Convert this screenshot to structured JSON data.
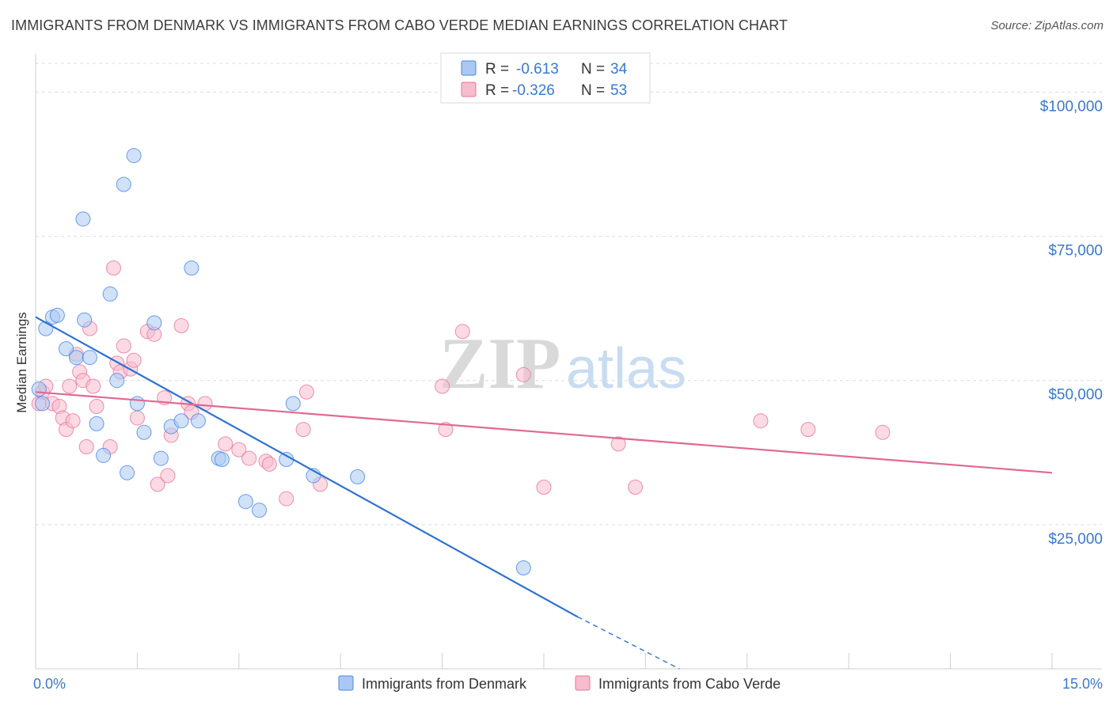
{
  "header": {
    "title": "IMMIGRANTS FROM DENMARK VS IMMIGRANTS FROM CABO VERDE MEDIAN EARNINGS CORRELATION CHART",
    "source": "Source: ZipAtlas.com"
  },
  "watermark": {
    "zip": "ZIP",
    "atlas": "atlas"
  },
  "colors": {
    "blue": "#4a86e8",
    "blue_fill": "#aac8f2",
    "blue_line": "#2e72d2",
    "pink": "#e8769a",
    "pink_fill": "#f7bccd",
    "pink_line": "#e06994",
    "tick_text": "#3a78d0",
    "grid": "#dcdcdc"
  },
  "legend": {
    "rows": [
      {
        "r_label": "R =",
        "r_value": "-0.613",
        "n_label": "N =",
        "n_value": "34"
      },
      {
        "r_label": "R =",
        "r_value": "-0.326",
        "n_label": "N =",
        "n_value": "53"
      }
    ]
  },
  "bottom_legend": {
    "items": [
      {
        "label": "Immigrants from Denmark"
      },
      {
        "label": "Immigrants from Cabo Verde"
      }
    ]
  },
  "chart_data": {
    "type": "scatter",
    "xlabel": "",
    "ylabel": "Median Earnings",
    "xlim": [
      0,
      15
    ],
    "ylim": [
      0,
      105000
    ],
    "x_tick_labels": [
      "0.0%",
      "15.0%"
    ],
    "y_ticks": [
      {
        "value": 25000,
        "label": "$25,000"
      },
      {
        "value": 50000,
        "label": "$50,000"
      },
      {
        "value": 75000,
        "label": "$75,000"
      },
      {
        "value": 100000,
        "label": "$100,000"
      }
    ],
    "grid": true,
    "legend_placement": "top-center",
    "series": [
      {
        "name": "Immigrants from Denmark",
        "color": "blue",
        "points": [
          [
            0.05,
            48500
          ],
          [
            0.1,
            46000
          ],
          [
            0.15,
            59000
          ],
          [
            0.25,
            61000
          ],
          [
            0.32,
            61300
          ],
          [
            0.45,
            55500
          ],
          [
            0.6,
            54000
          ],
          [
            0.7,
            78000
          ],
          [
            0.72,
            60500
          ],
          [
            0.8,
            54000
          ],
          [
            0.9,
            42500
          ],
          [
            1.0,
            37000
          ],
          [
            1.1,
            65000
          ],
          [
            1.2,
            50000
          ],
          [
            1.3,
            84000
          ],
          [
            1.35,
            34000
          ],
          [
            1.45,
            89000
          ],
          [
            1.5,
            46000
          ],
          [
            1.6,
            41000
          ],
          [
            1.75,
            60000
          ],
          [
            1.85,
            36500
          ],
          [
            2.0,
            42000
          ],
          [
            2.15,
            43000
          ],
          [
            2.3,
            69500
          ],
          [
            2.4,
            43000
          ],
          [
            2.7,
            36500
          ],
          [
            2.75,
            36300
          ],
          [
            3.1,
            29000
          ],
          [
            3.3,
            27500
          ],
          [
            3.7,
            36300
          ],
          [
            3.8,
            46000
          ],
          [
            4.1,
            33500
          ],
          [
            4.75,
            33300
          ],
          [
            7.2,
            17500
          ]
        ],
        "trend": {
          "x": [
            0,
            8.0
          ],
          "y": [
            61000,
            9000
          ]
        },
        "trend_dashed": {
          "x": [
            8.0,
            9.5
          ],
          "y": [
            9000,
            -2000
          ]
        }
      },
      {
        "name": "Immigrants from Cabo Verde",
        "color": "pink",
        "points": [
          [
            0.05,
            46000
          ],
          [
            0.1,
            48000
          ],
          [
            0.15,
            49000
          ],
          [
            0.25,
            46000
          ],
          [
            0.35,
            45500
          ],
          [
            0.4,
            43500
          ],
          [
            0.45,
            41500
          ],
          [
            0.5,
            49000
          ],
          [
            0.55,
            43000
          ],
          [
            0.6,
            54500
          ],
          [
            0.65,
            51500
          ],
          [
            0.7,
            50000
          ],
          [
            0.75,
            38500
          ],
          [
            0.8,
            59000
          ],
          [
            0.85,
            49000
          ],
          [
            0.9,
            45500
          ],
          [
            1.1,
            38500
          ],
          [
            1.15,
            69500
          ],
          [
            1.2,
            53000
          ],
          [
            1.25,
            51500
          ],
          [
            1.3,
            56000
          ],
          [
            1.4,
            52000
          ],
          [
            1.45,
            53500
          ],
          [
            1.5,
            43500
          ],
          [
            1.65,
            58500
          ],
          [
            1.75,
            58000
          ],
          [
            1.8,
            32000
          ],
          [
            1.9,
            47000
          ],
          [
            1.95,
            33500
          ],
          [
            2.0,
            40500
          ],
          [
            2.15,
            59500
          ],
          [
            2.25,
            46000
          ],
          [
            2.3,
            44500
          ],
          [
            2.5,
            46000
          ],
          [
            2.8,
            39000
          ],
          [
            3.0,
            38000
          ],
          [
            3.15,
            36500
          ],
          [
            3.4,
            36000
          ],
          [
            3.45,
            35500
          ],
          [
            3.7,
            29500
          ],
          [
            3.95,
            41500
          ],
          [
            4.0,
            48000
          ],
          [
            4.2,
            32000
          ],
          [
            6.0,
            49000
          ],
          [
            6.05,
            41500
          ],
          [
            6.3,
            58500
          ],
          [
            7.2,
            51000
          ],
          [
            7.5,
            31500
          ],
          [
            8.6,
            39000
          ],
          [
            8.85,
            31500
          ],
          [
            10.7,
            43000
          ],
          [
            11.4,
            41500
          ],
          [
            12.5,
            41000
          ]
        ],
        "trend": {
          "x": [
            0,
            15.0
          ],
          "y": [
            48000,
            34000
          ]
        }
      }
    ]
  }
}
